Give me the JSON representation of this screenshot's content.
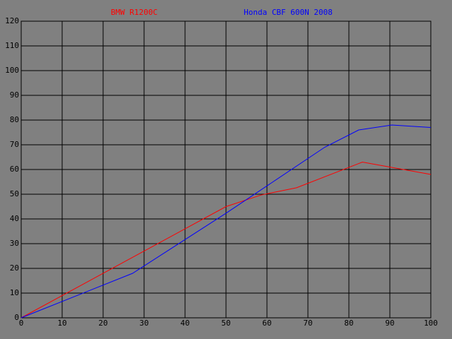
{
  "chart_data": {
    "type": "line",
    "series": [
      {
        "name": "BMW R1200C",
        "color": "#ff0000",
        "x": [
          0,
          50,
          58.6,
          67.2,
          83.3,
          100
        ],
        "values": [
          0,
          45,
          49.7,
          52.6,
          63,
          58
        ]
      },
      {
        "name": "Honda CBF 600N 2008",
        "color": "#0000ff",
        "x": [
          0,
          27.2,
          50,
          74.1,
          82.4,
          90.5,
          100
        ],
        "values": [
          0,
          18,
          42.3,
          69,
          76,
          78,
          77
        ]
      }
    ],
    "xlim": [
      0,
      100
    ],
    "xticks": [
      0,
      10,
      20,
      30,
      40,
      50,
      60,
      70,
      80,
      90,
      100
    ],
    "ylim": [
      0,
      120
    ],
    "yticks": [
      0,
      10,
      20,
      30,
      40,
      50,
      60,
      70,
      80,
      90,
      100,
      110,
      120
    ],
    "grid": true
  }
}
